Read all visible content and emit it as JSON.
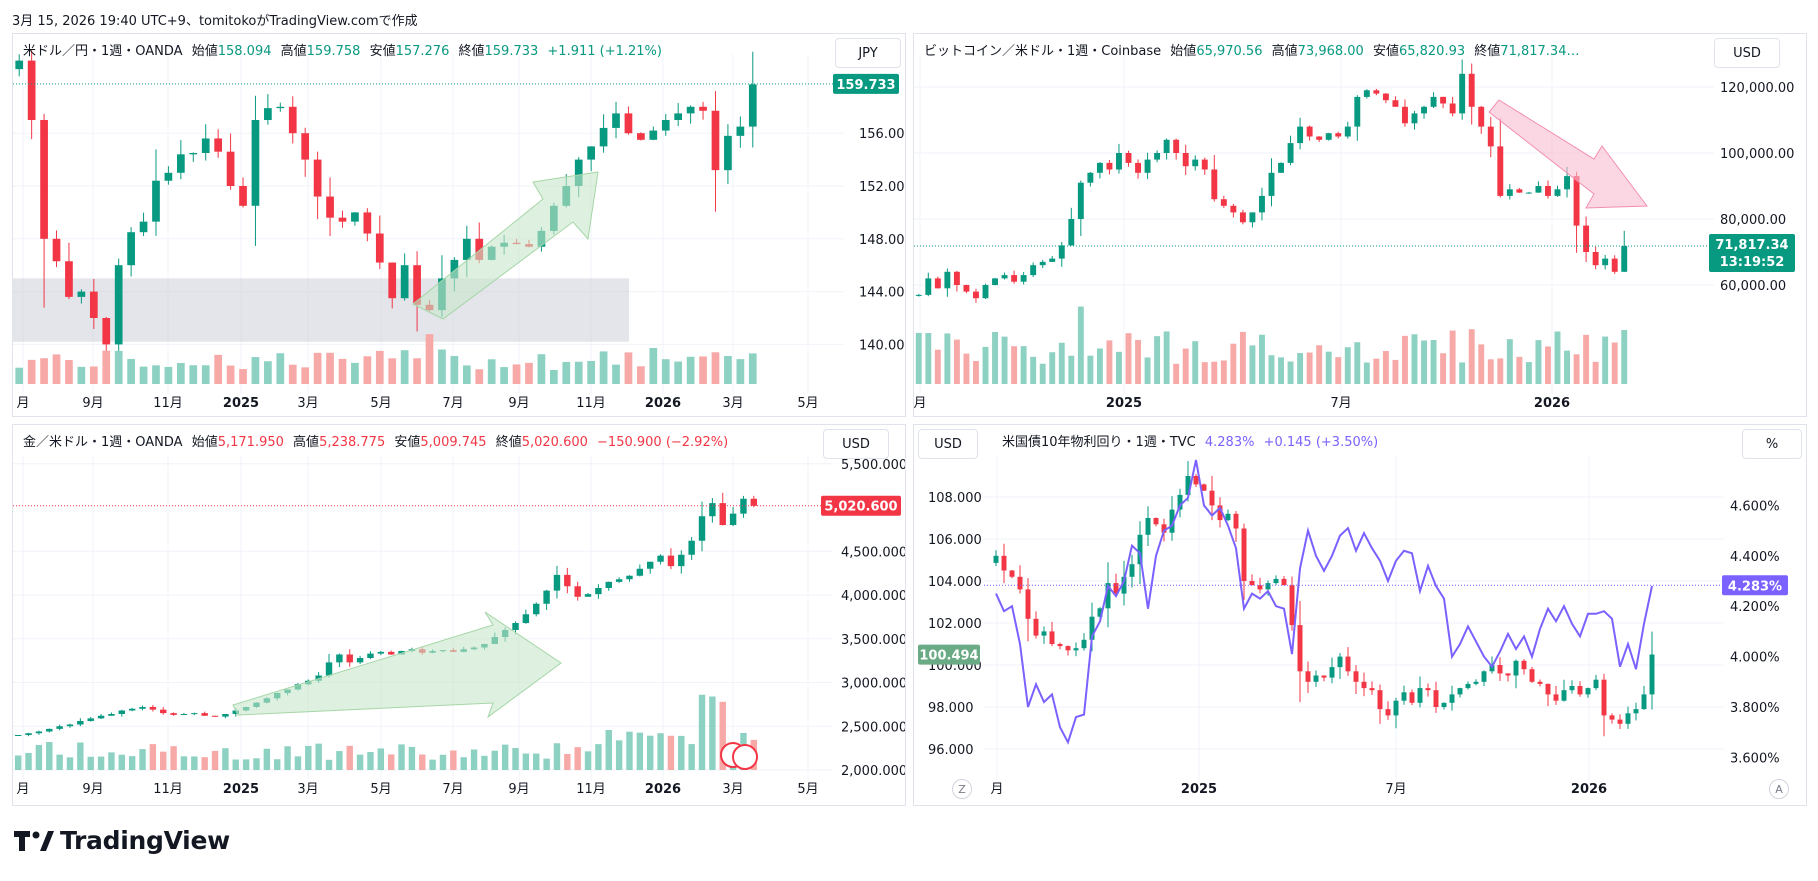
{
  "caption": "3月 15, 2026 19:40 UTC+9、tomitokoがTradingView.comで作成",
  "brand": {
    "name": "TradingView"
  },
  "colors": {
    "up": "#089981",
    "down": "#f23645",
    "up_vol": "#8dd1c3",
    "down_vol": "#f7a9a7",
    "tenyr": "#7b61ff",
    "grid": "#f0f3fa"
  },
  "panels": [
    {
      "id": "usdjpy",
      "symbol": "米ドル／円・1週・OANDA",
      "ohlc": {
        "open_label": "始値",
        "open": "158.094",
        "high_label": "高値",
        "high": "159.758",
        "low_label": "安値",
        "low": "157.276",
        "close_label": "終値",
        "close": "159.733",
        "change": "+1.911 (+1.21%)"
      },
      "currency": "JPY",
      "last_price": "159.733",
      "yticks": [
        "156.000",
        "152.000",
        "148.000",
        "144.000",
        "140.000"
      ],
      "xticks": [
        "月",
        "9月",
        "11月",
        "2025",
        "3月",
        "5月",
        "7月",
        "9月",
        "11月",
        "2026",
        "3月",
        "5月"
      ]
    },
    {
      "id": "btcusd",
      "symbol": "ビットコイン／米ドル・1週・Coinbase",
      "ohlc": {
        "open_label": "始値",
        "open": "65,970.56",
        "high_label": "高値",
        "high": "73,968.00",
        "low_label": "安値",
        "low": "65,820.93",
        "close_label": "終値",
        "close": "71,817.34…"
      },
      "currency": "USD",
      "last_price": "71,817.34",
      "countdown": "13:19:52",
      "yticks": [
        "120,000.00",
        "100,000.00",
        "80,000.00",
        "60,000.00"
      ],
      "xticks": [
        "月",
        "2025",
        "7月",
        "2026"
      ]
    },
    {
      "id": "xauusd",
      "symbol": "金／米ドル・1週・OANDA",
      "ohlc": {
        "open_label": "始値",
        "open": "5,171.950",
        "high_label": "高値",
        "high": "5,238.775",
        "low_label": "安値",
        "low": "5,009.745",
        "close_label": "終値",
        "close": "5,020.600",
        "change": "−150.900 (−2.92%)"
      },
      "currency": "USD",
      "last_price": "5,020.600",
      "yticks": [
        "5,500.000",
        "4,500.000",
        "4,000.000",
        "3,500.000",
        "3,000.000",
        "2,500.000",
        "2,000.000"
      ],
      "xticks": [
        "月",
        "9月",
        "11月",
        "2025",
        "3月",
        "5月",
        "7月",
        "9月",
        "11月",
        "2026",
        "3月",
        "5月"
      ]
    },
    {
      "id": "dxy_us10y",
      "symbol": "米国債10年物利回り・1週・TVC",
      "value": "4.283%",
      "change": "+0.145 (+3.50%)",
      "left_currency": "USD",
      "right_unit": "%",
      "left_price": "100.494",
      "right_price": "4.283%",
      "yticks_left": [
        "108.000",
        "106.000",
        "104.000",
        "102.000",
        "100.000",
        "98.000",
        "96.000"
      ],
      "yticks_right": [
        "4.600%",
        "4.400%",
        "4.200%",
        "4.000%",
        "3.800%",
        "3.600%"
      ],
      "xticks": [
        "月",
        "2025",
        "7月",
        "2026"
      ],
      "z_button": "Z",
      "a_button": "A"
    }
  ],
  "chart_data": [
    {
      "type": "candlestick",
      "title": "米ドル／円・1週・OANDA",
      "ylim": [
        137,
        162
      ],
      "x_range": [
        "2024-07",
        "2026-05"
      ],
      "series": [
        {
          "name": "米ドル／円",
          "kind": "candles",
          "close": [
            161.5,
            157.0,
            148.0,
            146.3,
            143.6,
            144.0,
            142.0,
            140.0,
            146.0,
            148.5,
            149.3,
            152.4,
            153.0,
            154.4,
            154.5,
            155.6,
            154.6,
            152.0,
            150.5,
            157.0,
            157.9,
            158.0,
            156.0,
            154.0,
            151.2,
            149.6,
            149.3,
            150.0,
            148.4,
            146.2,
            143.5,
            146.0,
            143.0,
            142.6,
            145.0,
            146.4,
            148.0,
            146.4,
            147.4,
            147.7,
            147.6,
            147.4,
            148.6,
            150.5,
            152.0,
            154.0,
            155.0,
            156.4,
            157.5,
            156.0,
            155.5,
            156.2,
            157.0,
            157.5,
            158.0,
            157.7,
            153.2,
            155.8,
            156.5,
            159.7
          ]
        },
        {
          "name": "出来高",
          "kind": "volume",
          "values": "relative heights only"
        }
      ]
    },
    {
      "type": "candlestick",
      "title": "ビットコイン／米ドル・1週・Coinbase",
      "ylim": [
        30000,
        130000
      ],
      "x_range": [
        "2024-07",
        "2026-03"
      ],
      "series": [
        {
          "name": "ビットコイン／米ドル",
          "kind": "candles",
          "close": [
            57000,
            62000,
            59000,
            64000,
            60000,
            58000,
            56000,
            60000,
            62000,
            63000,
            61000,
            63000,
            66000,
            67000,
            68000,
            72000,
            80000,
            91000,
            94000,
            97000,
            95000,
            100000,
            97000,
            94000,
            98000,
            100000,
            104000,
            100000,
            96000,
            98000,
            95000,
            86000,
            84000,
            82000,
            79000,
            82000,
            87000,
            94000,
            97000,
            103000,
            108000,
            105000,
            104000,
            106000,
            105000,
            108000,
            117000,
            119000,
            118000,
            116000,
            114000,
            109000,
            112000,
            114000,
            117000,
            115000,
            112000,
            124000,
            114000,
            108000,
            102000,
            87000,
            89000,
            88000,
            88000,
            90000,
            87000,
            89000,
            93000,
            78000,
            70000,
            66000,
            68000,
            64000,
            71800
          ]
        },
        {
          "name": "出来高",
          "kind": "volume",
          "values": "relative heights only"
        }
      ]
    },
    {
      "type": "candlestick",
      "title": "金／米ドル・1週・OANDA",
      "ylim": [
        2000,
        5600
      ],
      "x_range": [
        "2024-07",
        "2026-05"
      ],
      "series": [
        {
          "name": "金／米ドル",
          "kind": "candles",
          "close": [
            2400,
            2420,
            2440,
            2470,
            2500,
            2520,
            2560,
            2590,
            2620,
            2640,
            2680,
            2700,
            2720,
            2690,
            2650,
            2630,
            2640,
            2650,
            2620,
            2610,
            2640,
            2680,
            2720,
            2770,
            2820,
            2880,
            2920,
            2980,
            3020,
            3080,
            3230,
            3320,
            3230,
            3280,
            3330,
            3350,
            3320,
            3360,
            3380,
            3340,
            3360,
            3370,
            3350,
            3380,
            3400,
            3440,
            3520,
            3600,
            3680,
            3780,
            3900,
            4050,
            4230,
            4100,
            3980,
            4010,
            4080,
            4150,
            4180,
            4220,
            4300,
            4380,
            4450,
            4330,
            4460,
            4620,
            4900,
            5050,
            4800,
            4930,
            5100,
            5020
          ]
        },
        {
          "name": "出来高",
          "kind": "volume",
          "values": "relative heights only"
        }
      ]
    },
    {
      "type": "candlestick",
      "title": "米国債10年物利回り・1週・TVC",
      "y_left_lim": [
        95,
        110
      ],
      "y_right_lim": [
        3.55,
        4.8
      ],
      "x_range": [
        "2024-07",
        "2026-03"
      ],
      "series": [
        {
          "name": "USD",
          "kind": "candles",
          "close": [
            105.2,
            104.5,
            104.2,
            103.6,
            102.2,
            101.4,
            101.6,
            101.0,
            100.9,
            100.7,
            100.8,
            101.2,
            102.3,
            102.7,
            103.9,
            103.4,
            104.2,
            104.8,
            106.2,
            107.0,
            106.7,
            106.3,
            107.4,
            108.1,
            109.0,
            108.6,
            108.3,
            107.6,
            106.9,
            107.2,
            106.5,
            104.0,
            103.8,
            103.6,
            103.9,
            104.1,
            103.8,
            101.9,
            99.7,
            99.2,
            99.5,
            99.4,
            99.9,
            100.4,
            99.7,
            99.2,
            98.9,
            98.8,
            97.9,
            97.6,
            98.3,
            98.7,
            98.2,
            98.9,
            98.8,
            98.0,
            98.2,
            98.6,
            98.9,
            99.1,
            99.2,
            99.7,
            100.0,
            99.6,
            99.5,
            100.2,
            99.8,
            99.2,
            99.1,
            98.6,
            98.3,
            98.8,
            99.0,
            98.6,
            98.9,
            99.3,
            97.6,
            97.4,
            97.2,
            97.7,
            97.9,
            98.6,
            100.5
          ]
        },
        {
          "name": "米国債10年物利回り",
          "kind": "line",
          "axis": "right",
          "values": [
            4.25,
            4.18,
            4.2,
            4.05,
            3.8,
            3.89,
            3.82,
            3.85,
            3.72,
            3.66,
            3.76,
            3.77,
            4.08,
            4.14,
            4.28,
            4.24,
            4.3,
            4.44,
            4.41,
            4.19,
            4.4,
            4.5,
            4.52,
            4.6,
            4.63,
            4.78,
            4.6,
            4.56,
            4.59,
            4.52,
            4.43,
            4.19,
            4.25,
            4.23,
            4.26,
            4.2,
            4.19,
            4.01,
            4.35,
            4.5,
            4.4,
            4.34,
            4.4,
            4.48,
            4.51,
            4.42,
            4.49,
            4.43,
            4.38,
            4.3,
            4.38,
            4.42,
            4.41,
            4.26,
            4.36,
            4.28,
            4.23,
            4.0,
            4.05,
            4.12,
            4.06,
            4.0,
            3.96,
            4.02,
            4.09,
            4.03,
            4.08,
            4.0,
            4.11,
            4.19,
            4.14,
            4.2,
            4.13,
            4.08,
            4.17,
            4.17,
            4.18,
            4.15,
            3.96,
            4.05,
            3.95,
            4.13,
            4.28
          ]
        }
      ]
    }
  ]
}
